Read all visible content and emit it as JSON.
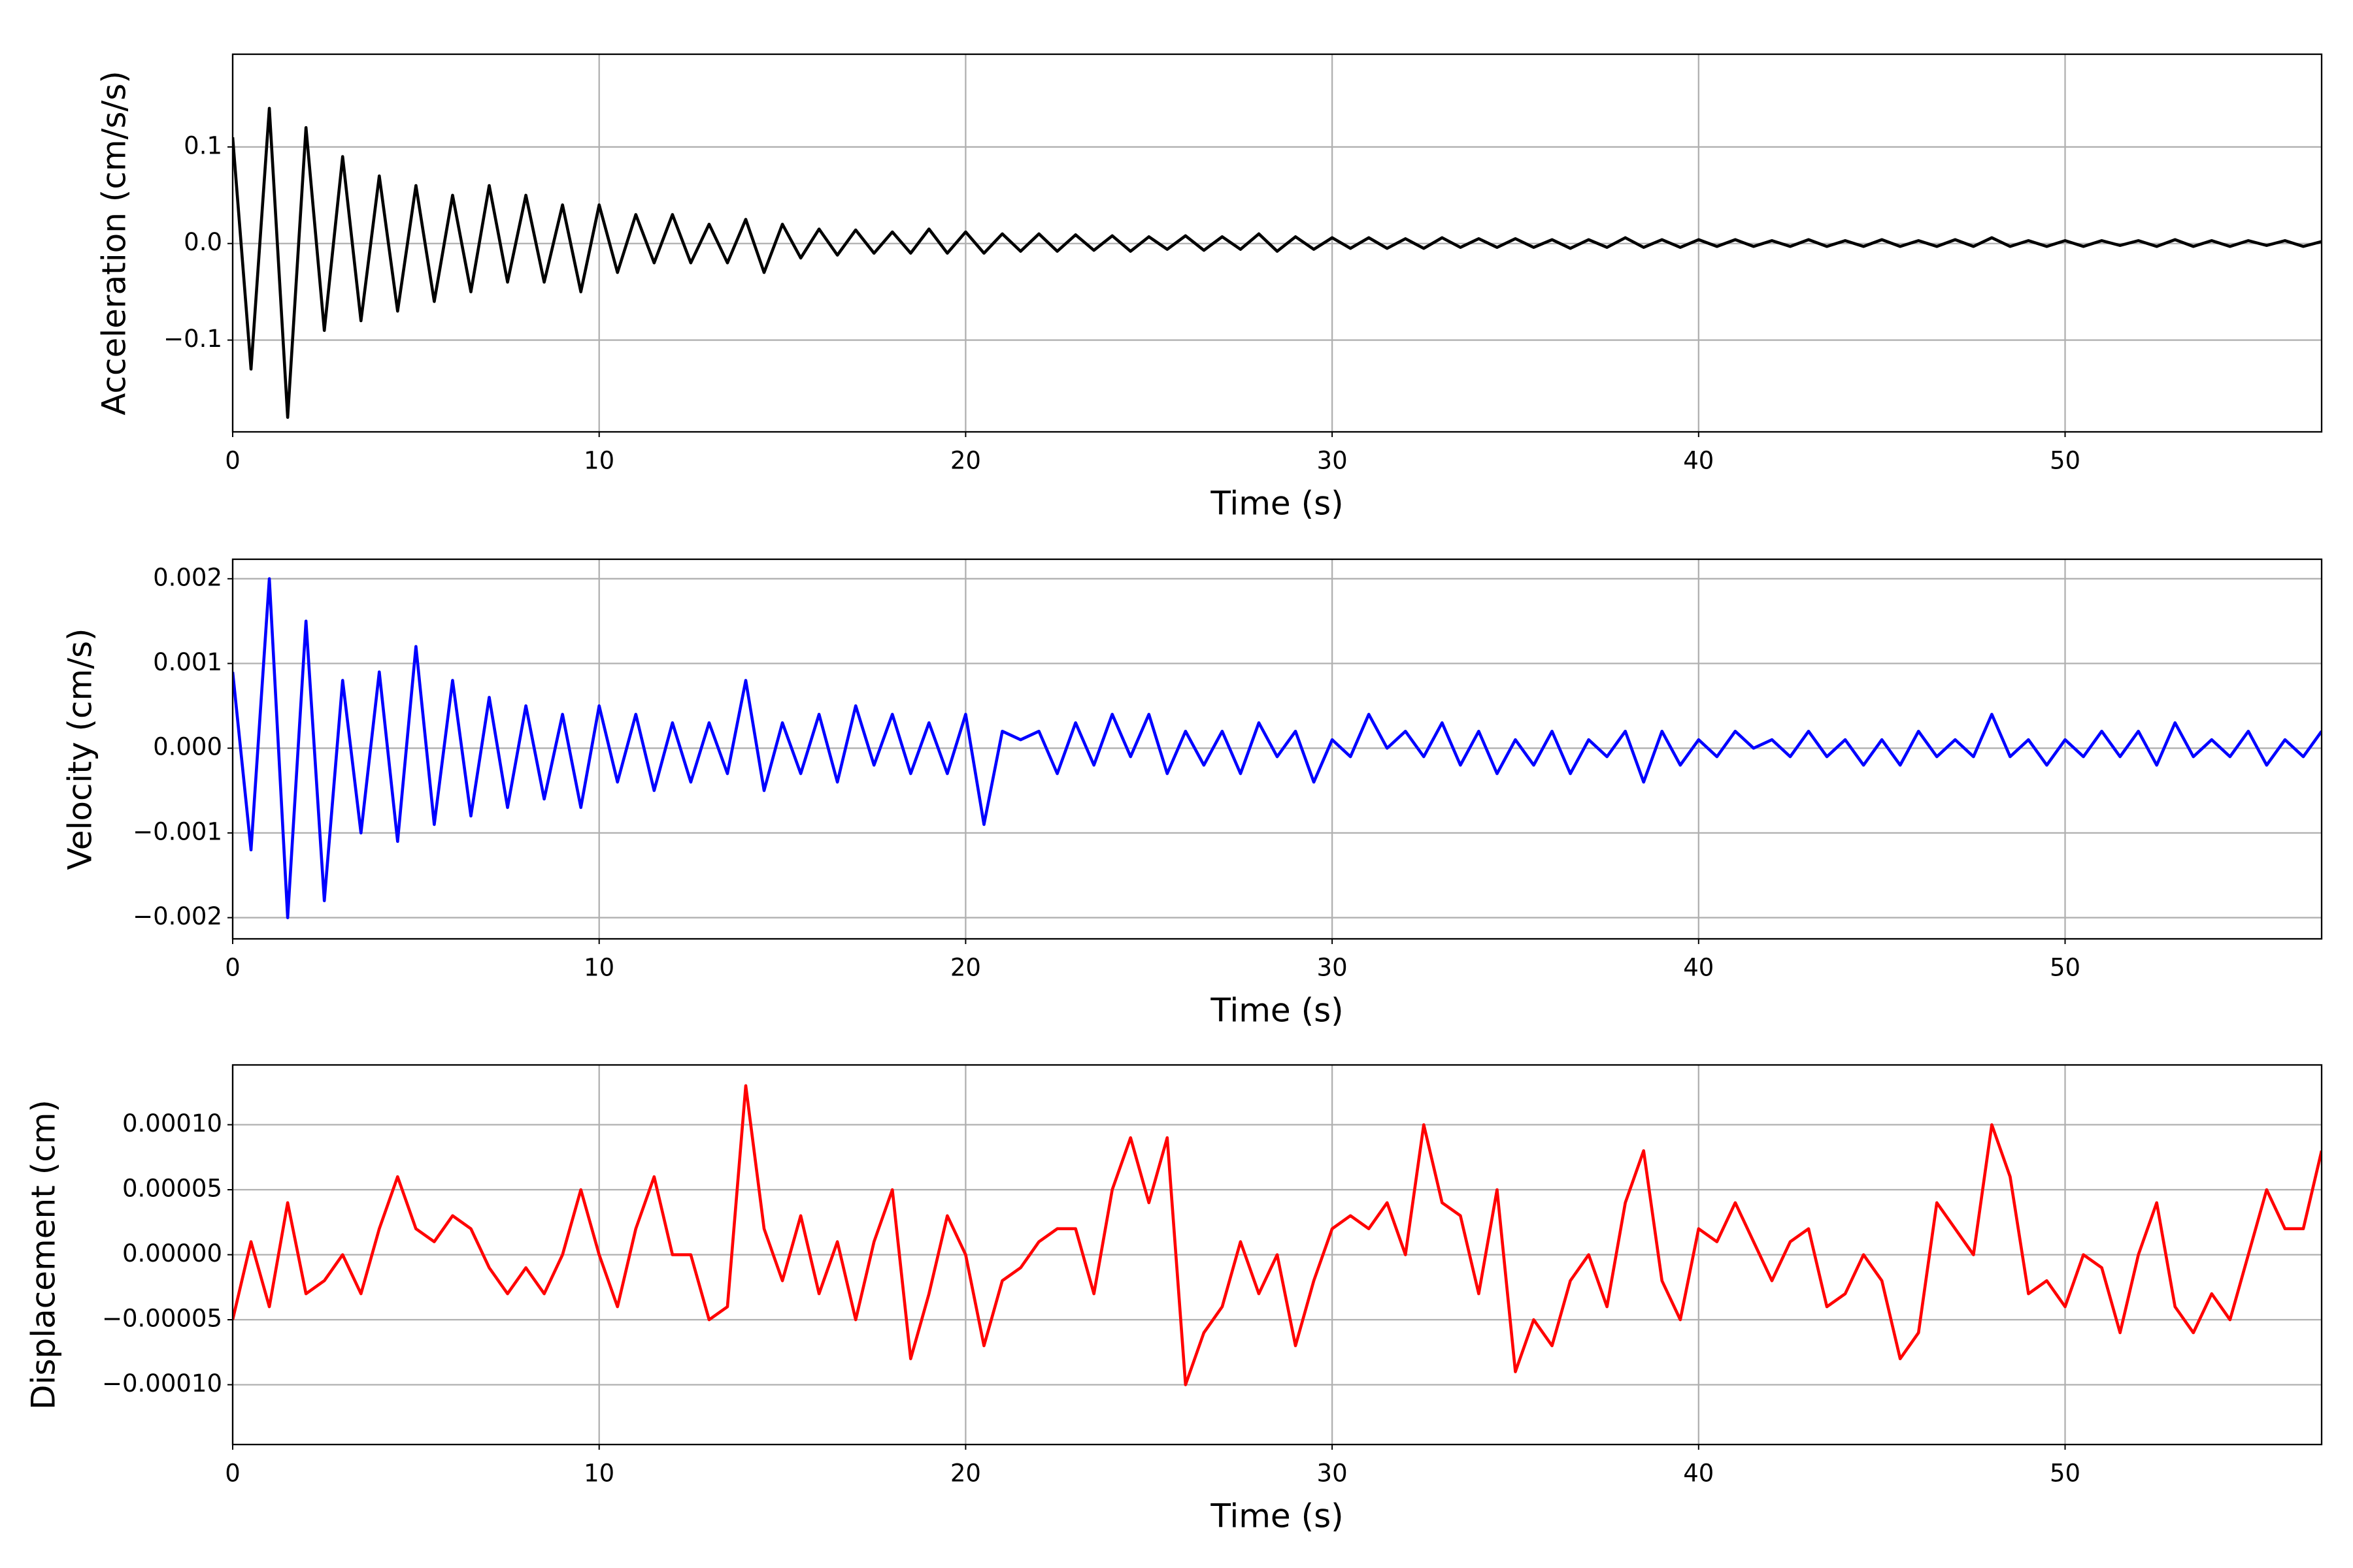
{
  "chart_data": [
    {
      "type": "line",
      "xlabel": "Time (s)",
      "ylabel": "Acceleration (cm/s/s)",
      "x": [
        0,
        0.5,
        1,
        1.5,
        2,
        2.5,
        3,
        3.5,
        4,
        4.5,
        5,
        5.5,
        6,
        6.5,
        7,
        7.5,
        8,
        8.5,
        9,
        9.5,
        10,
        10.5,
        11,
        11.5,
        12,
        12.5,
        13,
        13.5,
        14,
        14.5,
        15,
        15.5,
        16,
        16.5,
        17,
        17.5,
        18,
        18.5,
        19,
        19.5,
        20,
        20.5,
        21,
        21.5,
        22,
        22.5,
        23,
        23.5,
        24,
        24.5,
        25,
        25.5,
        26,
        26.5,
        27,
        27.5,
        28,
        28.5,
        29,
        29.5,
        30,
        30.5,
        31,
        31.5,
        32,
        32.5,
        33,
        33.5,
        34,
        34.5,
        35,
        35.5,
        36,
        36.5,
        37,
        37.5,
        38,
        38.5,
        39,
        39.5,
        40,
        40.5,
        41,
        41.5,
        42,
        42.5,
        43,
        43.5,
        44,
        44.5,
        45,
        45.5,
        46,
        46.5,
        47,
        47.5,
        48,
        48.5,
        49,
        49.5,
        50,
        50.5,
        51,
        51.5,
        52,
        52.5,
        53,
        53.5,
        54,
        54.5,
        55,
        55.5,
        56,
        56.5,
        57
      ],
      "series": [
        {
          "color": "#000000",
          "values": [
            0.11,
            -0.13,
            0.14,
            -0.18,
            0.12,
            -0.09,
            0.09,
            -0.08,
            0.07,
            -0.07,
            0.06,
            -0.06,
            0.05,
            -0.05,
            0.06,
            -0.04,
            0.05,
            -0.04,
            0.04,
            -0.05,
            0.04,
            -0.03,
            0.03,
            -0.02,
            0.03,
            -0.02,
            0.02,
            -0.02,
            0.025,
            -0.03,
            0.02,
            -0.015,
            0.015,
            -0.012,
            0.014,
            -0.01,
            0.012,
            -0.01,
            0.015,
            -0.01,
            0.012,
            -0.01,
            0.01,
            -0.008,
            0.01,
            -0.008,
            0.009,
            -0.007,
            0.008,
            -0.008,
            0.007,
            -0.006,
            0.008,
            -0.007,
            0.007,
            -0.006,
            0.01,
            -0.008,
            0.007,
            -0.006,
            0.006,
            -0.005,
            0.006,
            -0.005,
            0.005,
            -0.005,
            0.006,
            -0.004,
            0.005,
            -0.004,
            0.005,
            -0.004,
            0.004,
            -0.005,
            0.004,
            -0.004,
            0.006,
            -0.004,
            0.004,
            -0.004,
            0.004,
            -0.003,
            0.004,
            -0.003,
            0.003,
            -0.003,
            0.004,
            -0.003,
            0.003,
            -0.003,
            0.004,
            -0.003,
            0.003,
            -0.003,
            0.004,
            -0.003,
            0.006,
            -0.003,
            0.003,
            -0.003,
            0.003,
            -0.003,
            0.003,
            -0.002,
            0.003,
            -0.003,
            0.004,
            -0.003,
            0.003,
            -0.003,
            0.003,
            -0.002,
            0.003,
            -0.003,
            0.002
          ]
        }
      ],
      "xlim": [
        0,
        57
      ],
      "ylim": [
        -0.195,
        0.196
      ],
      "xticks": [
        0,
        10,
        20,
        30,
        40,
        50
      ],
      "yticks": [
        {
          "value": -0.1,
          "label": "−0.1"
        },
        {
          "value": 0,
          "label": "0.0"
        },
        {
          "value": 0.1,
          "label": "0.1"
        }
      ],
      "grid": true
    },
    {
      "type": "line",
      "xlabel": "Time (s)",
      "ylabel": "Velocity (cm/s)",
      "x": [
        0,
        0.5,
        1,
        1.5,
        2,
        2.5,
        3,
        3.5,
        4,
        4.5,
        5,
        5.5,
        6,
        6.5,
        7,
        7.5,
        8,
        8.5,
        9,
        9.5,
        10,
        10.5,
        11,
        11.5,
        12,
        12.5,
        13,
        13.5,
        14,
        14.5,
        15,
        15.5,
        16,
        16.5,
        17,
        17.5,
        18,
        18.5,
        19,
        19.5,
        20,
        20.5,
        21,
        21.5,
        22,
        22.5,
        23,
        23.5,
        24,
        24.5,
        25,
        25.5,
        26,
        26.5,
        27,
        27.5,
        28,
        28.5,
        29,
        29.5,
        30,
        30.5,
        31,
        31.5,
        32,
        32.5,
        33,
        33.5,
        34,
        34.5,
        35,
        35.5,
        36,
        36.5,
        37,
        37.5,
        38,
        38.5,
        39,
        39.5,
        40,
        40.5,
        41,
        41.5,
        42,
        42.5,
        43,
        43.5,
        44,
        44.5,
        45,
        45.5,
        46,
        46.5,
        47,
        47.5,
        48,
        48.5,
        49,
        49.5,
        50,
        50.5,
        51,
        51.5,
        52,
        52.5,
        53,
        53.5,
        54,
        54.5,
        55,
        55.5,
        56,
        56.5,
        57
      ],
      "series": [
        {
          "color": "#0000ff",
          "values": [
            0.0009,
            -0.0012,
            0.002,
            -0.002,
            0.0015,
            -0.0018,
            0.0008,
            -0.001,
            0.0009,
            -0.0011,
            0.0012,
            -0.0009,
            0.0008,
            -0.0008,
            0.0006,
            -0.0007,
            0.0005,
            -0.0006,
            0.0004,
            -0.0007,
            0.0005,
            -0.0004,
            0.0004,
            -0.0005,
            0.0003,
            -0.0004,
            0.0003,
            -0.0003,
            0.0008,
            -0.0005,
            0.0003,
            -0.0003,
            0.0004,
            -0.0004,
            0.0005,
            -0.0002,
            0.0004,
            -0.0003,
            0.0003,
            -0.0003,
            0.0004,
            -0.0009,
            0.0002,
            0.0001,
            0.0002,
            -0.0003,
            0.0003,
            -0.0002,
            0.0004,
            -0.0001,
            0.0004,
            -0.0003,
            0.0002,
            -0.0002,
            0.0002,
            -0.0003,
            0.0003,
            -0.0001,
            0.0002,
            -0.0004,
            0.0001,
            -0.0001,
            0.0004,
            0,
            0.0002,
            -0.0001,
            0.0003,
            -0.0002,
            0.0002,
            -0.0003,
            0.0001,
            -0.0002,
            0.0002,
            -0.0003,
            0.0001,
            -0.0001,
            0.0002,
            -0.0004,
            0.0002,
            -0.0002,
            0.0001,
            -0.0001,
            0.0002,
            0,
            0.0001,
            -0.0001,
            0.0002,
            -0.0001,
            0.0001,
            -0.0002,
            0.0001,
            -0.0002,
            0.0002,
            -0.0001,
            0.0001,
            -0.0001,
            0.0004,
            -0.0001,
            0.0001,
            -0.0002,
            0.0001,
            -0.0001,
            0.0002,
            -0.0001,
            0.0002,
            -0.0002,
            0.0003,
            -0.0001,
            0.0001,
            -0.0001,
            0.0002,
            -0.0002,
            0.0001,
            -0.0001,
            0.0002
          ]
        }
      ],
      "xlim": [
        0,
        57
      ],
      "ylim": [
        -0.00225,
        0.00223
      ],
      "xticks": [
        0,
        10,
        20,
        30,
        40,
        50
      ],
      "yticks": [
        {
          "value": -0.002,
          "label": "−0.002"
        },
        {
          "value": -0.001,
          "label": "−0.001"
        },
        {
          "value": 0,
          "label": "0.000"
        },
        {
          "value": 0.001,
          "label": "0.001"
        },
        {
          "value": 0.002,
          "label": "0.002"
        }
      ],
      "grid": true
    },
    {
      "type": "line",
      "xlabel": "Time (s)",
      "ylabel": "Displacement (cm)",
      "x": [
        0,
        0.5,
        1,
        1.5,
        2,
        2.5,
        3,
        3.5,
        4,
        4.5,
        5,
        5.5,
        6,
        6.5,
        7,
        7.5,
        8,
        8.5,
        9,
        9.5,
        10,
        10.5,
        11,
        11.5,
        12,
        12.5,
        13,
        13.5,
        14,
        14.5,
        15,
        15.5,
        16,
        16.5,
        17,
        17.5,
        18,
        18.5,
        19,
        19.5,
        20,
        20.5,
        21,
        21.5,
        22,
        22.5,
        23,
        23.5,
        24,
        24.5,
        25,
        25.5,
        26,
        26.5,
        27,
        27.5,
        28,
        28.5,
        29,
        29.5,
        30,
        30.5,
        31,
        31.5,
        32,
        32.5,
        33,
        33.5,
        34,
        34.5,
        35,
        35.5,
        36,
        36.5,
        37,
        37.5,
        38,
        38.5,
        39,
        39.5,
        40,
        40.5,
        41,
        41.5,
        42,
        42.5,
        43,
        43.5,
        44,
        44.5,
        45,
        45.5,
        46,
        46.5,
        47,
        47.5,
        48,
        48.5,
        49,
        49.5,
        50,
        50.5,
        51,
        51.5,
        52,
        52.5,
        53,
        53.5,
        54,
        54.5,
        55,
        55.5,
        56,
        56.5,
        57
      ],
      "series": [
        {
          "color": "#ff0000",
          "values": [
            -5e-05,
            1e-05,
            -4e-05,
            4e-05,
            -3e-05,
            -2e-05,
            0,
            -3e-05,
            2e-05,
            6e-05,
            2e-05,
            1e-05,
            3e-05,
            2e-05,
            -1e-05,
            -3e-05,
            -1e-05,
            -3e-05,
            0,
            5e-05,
            0,
            -4e-05,
            2e-05,
            6e-05,
            0,
            0,
            -5e-05,
            -4e-05,
            0.00013,
            2e-05,
            -2e-05,
            3e-05,
            -3e-05,
            1e-05,
            -5e-05,
            1e-05,
            5e-05,
            -8e-05,
            -3e-05,
            3e-05,
            0,
            -7e-05,
            -2e-05,
            -1e-05,
            1e-05,
            2e-05,
            2e-05,
            -3e-05,
            5e-05,
            9e-05,
            4e-05,
            9e-05,
            -0.0001,
            -6e-05,
            -4e-05,
            1e-05,
            -3e-05,
            0,
            -7e-05,
            -2e-05,
            2e-05,
            3e-05,
            2e-05,
            4e-05,
            0,
            0.0001,
            4e-05,
            3e-05,
            -3e-05,
            5e-05,
            -9e-05,
            -5e-05,
            -7e-05,
            -2e-05,
            0,
            -4e-05,
            4e-05,
            8e-05,
            -2e-05,
            -5e-05,
            2e-05,
            1e-05,
            4e-05,
            1e-05,
            -2e-05,
            1e-05,
            2e-05,
            -4e-05,
            -3e-05,
            0,
            -2e-05,
            -8e-05,
            -6e-05,
            4e-05,
            2e-05,
            0,
            0.0001,
            6e-05,
            -3e-05,
            -2e-05,
            -4e-05,
            0,
            -1e-05,
            -6e-05,
            0,
            4e-05,
            -4e-05,
            -6e-05,
            -3e-05,
            -5e-05,
            0,
            5e-05,
            2e-05,
            2e-05,
            8e-05
          ]
        }
      ],
      "xlim": [
        0,
        57
      ],
      "ylim": [
        -0.000146,
        0.000146
      ],
      "xticks": [
        0,
        10,
        20,
        30,
        40,
        50
      ],
      "yticks": [
        {
          "value": -0.0001,
          "label": "−0.00010"
        },
        {
          "value": -5e-05,
          "label": "−0.00005"
        },
        {
          "value": 0,
          "label": "0.00000"
        },
        {
          "value": 5e-05,
          "label": "0.00005"
        },
        {
          "value": 0.0001,
          "label": "0.00010"
        }
      ],
      "grid": true
    }
  ]
}
